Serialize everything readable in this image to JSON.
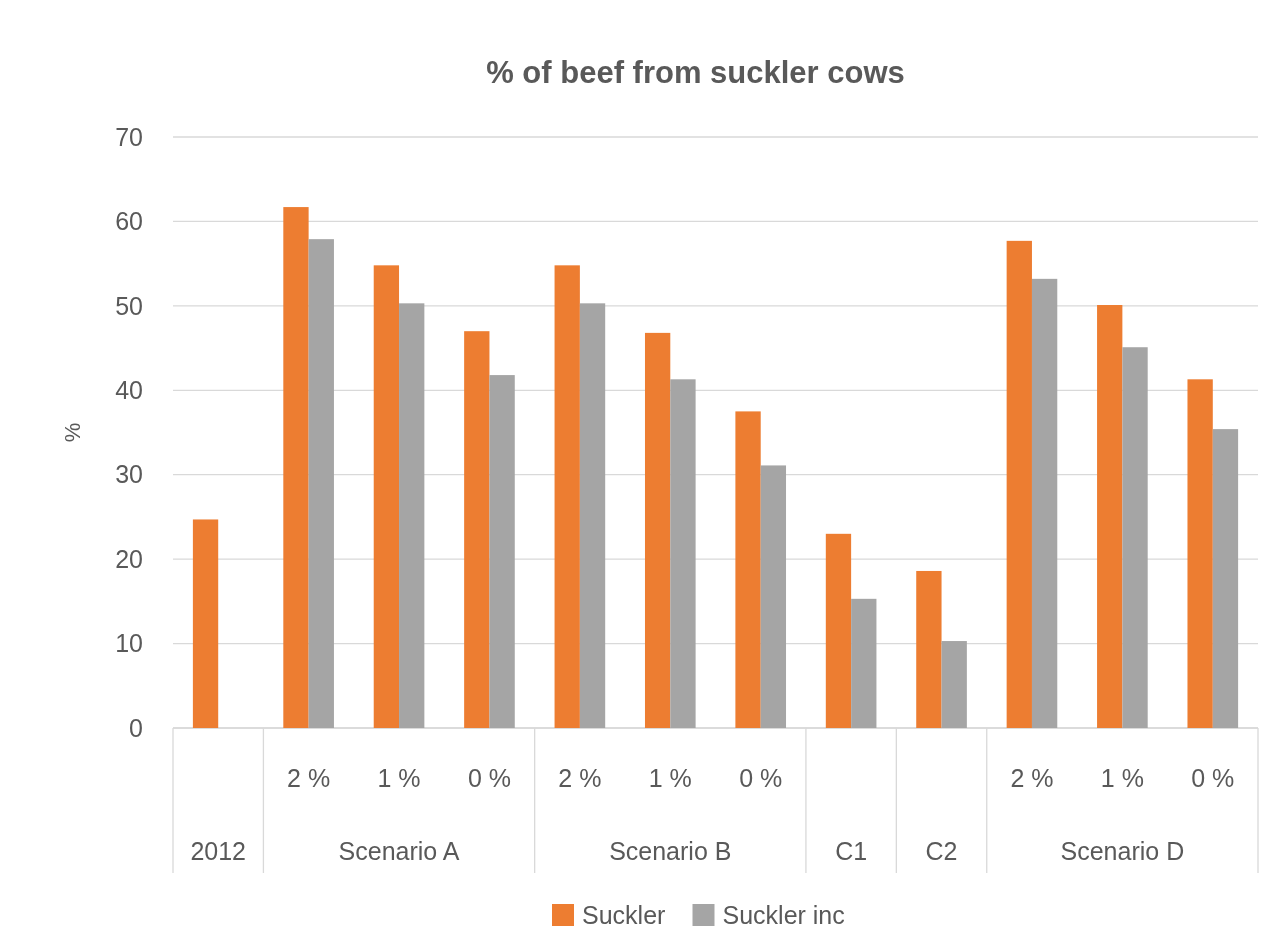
{
  "chart_data": {
    "type": "bar",
    "title": "% of beef from suckler cows",
    "ylabel": "%",
    "categories": [
      null,
      "2 %",
      "1 %",
      "0 %",
      "2 %",
      "1 %",
      "0 %",
      null,
      null,
      "2 %",
      "1 %",
      "0 %"
    ],
    "annotations": [
      "2012",
      "Scenario A",
      "Scenario B",
      "C1",
      "C2",
      "Scenario D"
    ],
    "series": [
      {
        "name": "Suckler",
        "color": "#ed7d31",
        "values": [
          24.7,
          61.7,
          54.8,
          47,
          54.8,
          46.8,
          37.5,
          23,
          18.6,
          57.7,
          50.1,
          41.3
        ]
      },
      {
        "name": "Suckler inc",
        "color": "#a5a5a5",
        "values": [
          null,
          57.9,
          50.3,
          41.8,
          50.3,
          41.3,
          31.1,
          15.3,
          10.3,
          53.2,
          45.1,
          35.4
        ]
      }
    ],
    "ylim": [
      0,
      70
    ],
    "yticks": [
      0,
      10,
      20,
      30,
      40,
      50,
      60,
      70
    ],
    "grid": "y",
    "legend": "bottom"
  }
}
